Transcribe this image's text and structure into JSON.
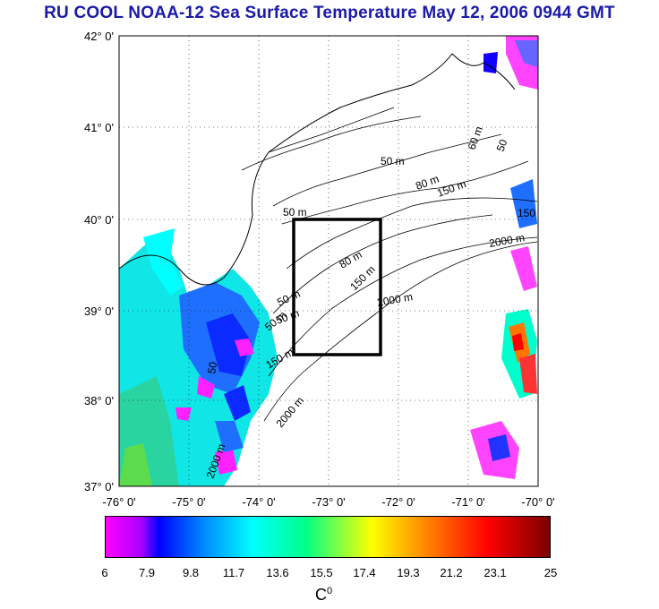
{
  "title": "RU COOL  NOAA-12 Sea Surface Temperature May 12, 2006 0944 GMT",
  "lat_labels": [
    "42° 0'",
    "41° 0'",
    "40° 0'",
    "39° 0'",
    "38° 0'",
    "37° 0'"
  ],
  "lon_labels": [
    "-76° 0'",
    "-75° 0'",
    "-74° 0'",
    "-73° 0'",
    "-72° 0'",
    "-71° 0'",
    "-70° 0'"
  ],
  "contour_labels": [
    "50 m",
    "80 m",
    "150 m",
    "2000 m",
    "60 m",
    "150",
    "50",
    "80 m",
    "150 m",
    "2000 m",
    "50 m",
    "50 m",
    "50 m",
    "2000 m",
    "50 m",
    "150 m",
    "50",
    "2000 m"
  ],
  "colorbar": {
    "ticks": [
      "6",
      "7.9",
      "9.8",
      "11.7",
      "13.6",
      "15.5",
      "17.4",
      "19.3",
      "21.2",
      "23.1",
      "25"
    ],
    "unit": "C",
    "unit_sup": "0",
    "colors": [
      "#ff00ff",
      "#0000ff",
      "#00ffff",
      "#00ff88",
      "#ffff00",
      "#ff8800",
      "#ff0000",
      "#7a0000"
    ]
  }
}
